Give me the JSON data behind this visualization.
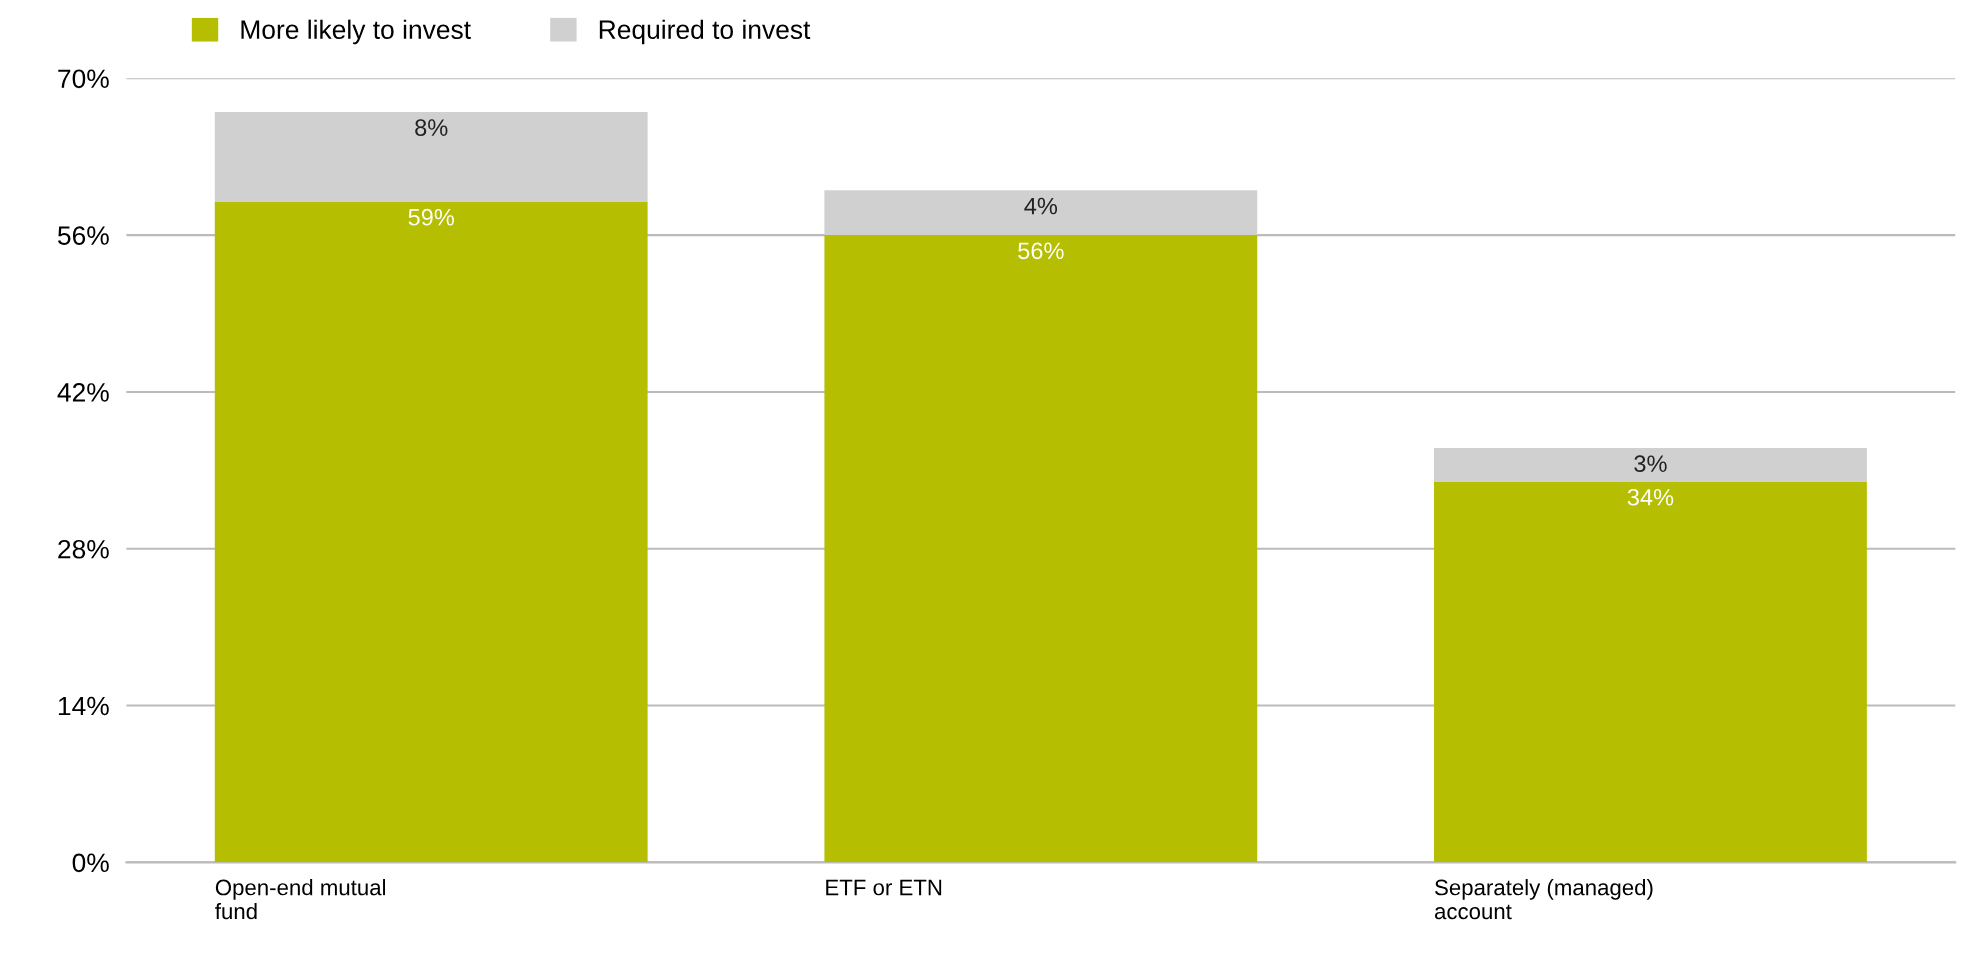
{
  "chart_data": {
    "type": "bar",
    "stacked": true,
    "categories": [
      "Open-end mutual\nfund",
      "ETF or ETN",
      "Separately (managed)\naccount"
    ],
    "series": [
      {
        "name": "More likely to invest",
        "color": "#b5be00",
        "values": [
          59,
          56,
          34
        ],
        "value_labels": [
          "59%",
          "56%",
          "34%"
        ]
      },
      {
        "name": "Required to invest",
        "color": "#d0d0d0",
        "values": [
          8,
          4,
          3
        ],
        "value_labels": [
          "8%",
          "4%",
          "3%"
        ]
      }
    ],
    "ylim": [
      0,
      70
    ],
    "yticks": [
      {
        "value": 0,
        "label": "0%"
      },
      {
        "value": 14,
        "label": "14%"
      },
      {
        "value": 28,
        "label": "28%"
      },
      {
        "value": 42,
        "label": "42%"
      },
      {
        "value": 56,
        "label": "56%"
      },
      {
        "value": 70,
        "label": "70%"
      }
    ],
    "grid": "y",
    "legend": "top left"
  }
}
